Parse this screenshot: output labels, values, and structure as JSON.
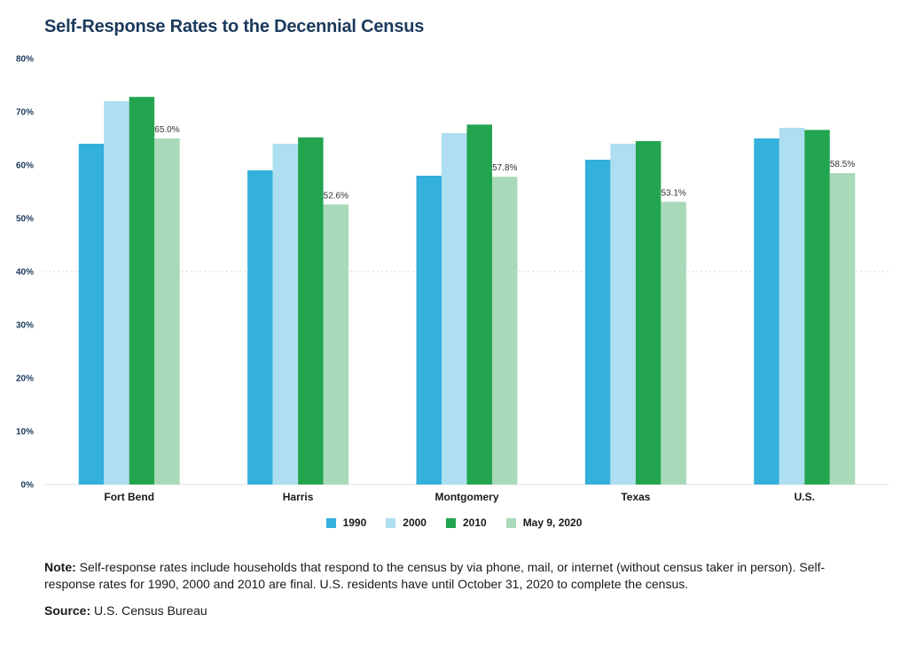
{
  "page": {
    "title": "Self-Response Rates to the Decennial Census",
    "note_label": "Note:",
    "note_text": "Self-response rates include households that respond to the census by via phone, mail, or internet (without census taker in person). Self-response rates for 1990, 2000 and 2010 are final. U.S. residents have until October 31, 2020 to complete the census.",
    "source_label": "Source:",
    "source_text": "U.S. Census Bureau"
  },
  "chart_data": {
    "type": "bar",
    "title": "Self-Response Rates to the Decennial Census",
    "xlabel": "",
    "ylabel": "",
    "categories": [
      "Fort Bend",
      "Harris",
      "Montgomery",
      "Texas",
      "U.S."
    ],
    "ylim": [
      0,
      80
    ],
    "yticks": [
      0,
      10,
      20,
      30,
      40,
      50,
      60,
      70,
      80
    ],
    "ytick_labels": [
      "0%",
      "10%",
      "20%",
      "30%",
      "40%",
      "50%",
      "60%",
      "70%",
      "80%"
    ],
    "grid": "dotted line at 40%",
    "legend_position": "bottom-center",
    "series": [
      {
        "name": "1990",
        "color": "#34b0dc",
        "values": [
          64,
          59,
          58,
          61,
          65
        ]
      },
      {
        "name": "2000",
        "color": "#addff0",
        "values": [
          72,
          64,
          66,
          64,
          67
        ]
      },
      {
        "name": "2010",
        "color": "#23a54f",
        "values": [
          72.8,
          65.2,
          67.6,
          64.5,
          66.6
        ]
      },
      {
        "name": "May 9, 2020",
        "color": "#a8dab9",
        "values": [
          65.0,
          52.6,
          57.8,
          53.1,
          58.5
        ],
        "data_labels": [
          "65.0%",
          "52.6%",
          "57.8%",
          "53.1%",
          "58.5%"
        ]
      }
    ]
  }
}
